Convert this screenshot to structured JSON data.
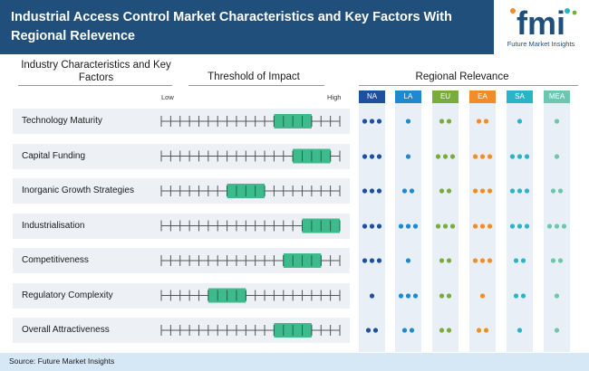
{
  "header": {
    "title": "Industrial Access Control Market Characteristics and Key Factors With Regional Relevence",
    "logo_text": "fmi",
    "logo_tagline": "Future Market Insights"
  },
  "columns": {
    "factors_heading": "Industry Characteristics and Key Factors",
    "impact_heading": "Threshold of Impact",
    "regional_heading": "Regional Relevance",
    "low_label": "Low",
    "high_label": "High"
  },
  "colors": {
    "title_band": "#1f4f7a",
    "impact_box": "#3dbb8c",
    "NA": "#1f4f9f",
    "LA": "#1e88d0",
    "EU": "#7aac3a",
    "EA": "#f28c28",
    "SA": "#29b4c8",
    "MEA": "#6cc6b0"
  },
  "footer": {
    "source": "Source: Future Market Insights"
  },
  "chart_data": {
    "type": "table",
    "title": "Industrial Access Control Market Characteristics and Key Factors With Regional Relevence",
    "impact_scale": {
      "ticks": 20,
      "low": "Low",
      "high": "High"
    },
    "regions": [
      "NA",
      "LA",
      "EU",
      "EA",
      "SA",
      "MEA"
    ],
    "rows": [
      {
        "factor": "Technology Maturity",
        "impact": [
          13,
          17
        ],
        "relevance": [
          3,
          1,
          2,
          2,
          1,
          1
        ]
      },
      {
        "factor": "Capital Funding",
        "impact": [
          15,
          19
        ],
        "relevance": [
          3,
          1,
          3,
          3,
          3,
          1
        ]
      },
      {
        "factor": "Inorganic Growth Strategies",
        "impact": [
          8,
          12
        ],
        "relevance": [
          3,
          2,
          2,
          3,
          3,
          2
        ]
      },
      {
        "factor": "Industrialisation",
        "impact": [
          16,
          20
        ],
        "relevance": [
          3,
          3,
          3,
          3,
          3,
          3
        ]
      },
      {
        "factor": "Competitiveness",
        "impact": [
          14,
          18
        ],
        "relevance": [
          3,
          1,
          2,
          3,
          2,
          2
        ]
      },
      {
        "factor": "Regulatory Complexity",
        "impact": [
          6,
          10
        ],
        "relevance": [
          1,
          3,
          2,
          1,
          2,
          1
        ]
      },
      {
        "factor": "Overall Attractiveness",
        "impact": [
          13,
          17
        ],
        "relevance": [
          2,
          2,
          2,
          2,
          1,
          1
        ]
      }
    ]
  }
}
